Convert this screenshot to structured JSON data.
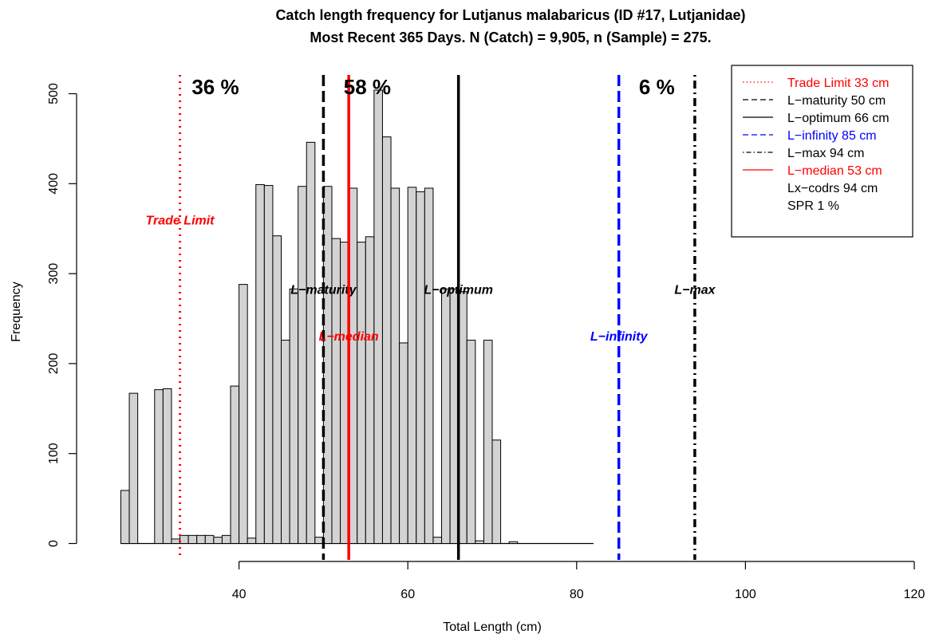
{
  "chart_data": {
    "type": "bar",
    "title": "Catch length frequency for Lutjanus malabaricus (ID #17, Lutjanidae)",
    "subtitle": "Most Recent 365 Days. N (Catch) = 9,905, n (Sample) = 275.",
    "xlabel": "Total Length (cm)",
    "ylabel": "Frequency",
    "xlim": [
      20,
      120
    ],
    "ylim": [
      0,
      520
    ],
    "xticks": [
      40,
      60,
      80,
      100,
      120
    ],
    "yticks": [
      0,
      100,
      200,
      300,
      400,
      500
    ],
    "bin_width": 1,
    "bins": [
      {
        "x": 26,
        "y": 59
      },
      {
        "x": 27,
        "y": 167
      },
      {
        "x": 30,
        "y": 171
      },
      {
        "x": 31,
        "y": 172
      },
      {
        "x": 32,
        "y": 5
      },
      {
        "x": 33,
        "y": 9
      },
      {
        "x": 34,
        "y": 9
      },
      {
        "x": 35,
        "y": 9
      },
      {
        "x": 36,
        "y": 9
      },
      {
        "x": 37,
        "y": 7
      },
      {
        "x": 38,
        "y": 9
      },
      {
        "x": 39,
        "y": 175
      },
      {
        "x": 40,
        "y": 288
      },
      {
        "x": 41,
        "y": 6
      },
      {
        "x": 42,
        "y": 399
      },
      {
        "x": 43,
        "y": 398
      },
      {
        "x": 44,
        "y": 342
      },
      {
        "x": 45,
        "y": 226
      },
      {
        "x": 46,
        "y": 283
      },
      {
        "x": 47,
        "y": 397
      },
      {
        "x": 48,
        "y": 446
      },
      {
        "x": 49,
        "y": 7
      },
      {
        "x": 50,
        "y": 397
      },
      {
        "x": 51,
        "y": 339
      },
      {
        "x": 52,
        "y": 335
      },
      {
        "x": 53,
        "y": 395
      },
      {
        "x": 54,
        "y": 335
      },
      {
        "x": 55,
        "y": 341
      },
      {
        "x": 56,
        "y": 504
      },
      {
        "x": 57,
        "y": 452
      },
      {
        "x": 58,
        "y": 395
      },
      {
        "x": 59,
        "y": 223
      },
      {
        "x": 60,
        "y": 396
      },
      {
        "x": 61,
        "y": 391
      },
      {
        "x": 62,
        "y": 395
      },
      {
        "x": 63,
        "y": 7
      },
      {
        "x": 64,
        "y": 283
      },
      {
        "x": 65,
        "y": 283
      },
      {
        "x": 66,
        "y": 280
      },
      {
        "x": 67,
        "y": 226
      },
      {
        "x": 68,
        "y": 3
      },
      {
        "x": 69,
        "y": 226
      },
      {
        "x": 70,
        "y": 115
      },
      {
        "x": 72,
        "y": 2
      }
    ],
    "baseline_range": [
      26,
      82
    ],
    "reference_lines": [
      {
        "key": "trade",
        "x": 33,
        "color": "#ff0000",
        "style": "dotted",
        "label": "Trade Limit",
        "label_y": 360,
        "legend": "Trade Limit 33 cm"
      },
      {
        "key": "maturity",
        "x": 50,
        "color": "#000000",
        "style": "dashed",
        "label": "L−maturity",
        "label_y": 283,
        "legend": "L−maturity 50 cm"
      },
      {
        "key": "optimum",
        "x": 66,
        "color": "#000000",
        "style": "solid",
        "label": "L−optimum",
        "label_y": 283,
        "legend": "L−optimum 66 cm"
      },
      {
        "key": "infinity",
        "x": 85,
        "color": "#0000ff",
        "style": "dashed",
        "label": "L−infinity",
        "label_y": 231,
        "legend": "L−infinity 85 cm"
      },
      {
        "key": "max",
        "x": 94,
        "color": "#000000",
        "style": "dotdash",
        "label": "L−max",
        "label_y": 283,
        "legend": "L−max 94 cm"
      },
      {
        "key": "median",
        "x": 53,
        "color": "#ff0000",
        "style": "solid",
        "label": "L−median",
        "label_y": 231,
        "legend": "L−median 53 cm"
      }
    ],
    "legend_extra": [
      "Lx−codrs 94 cm",
      "SPR 1 %"
    ],
    "legend_position": "top-right",
    "percent_labels": [
      {
        "text": "36 %",
        "x": 37.2
      },
      {
        "text": "58 %",
        "x": 55.2
      },
      {
        "text": "6 %",
        "x": 89.5
      }
    ]
  }
}
